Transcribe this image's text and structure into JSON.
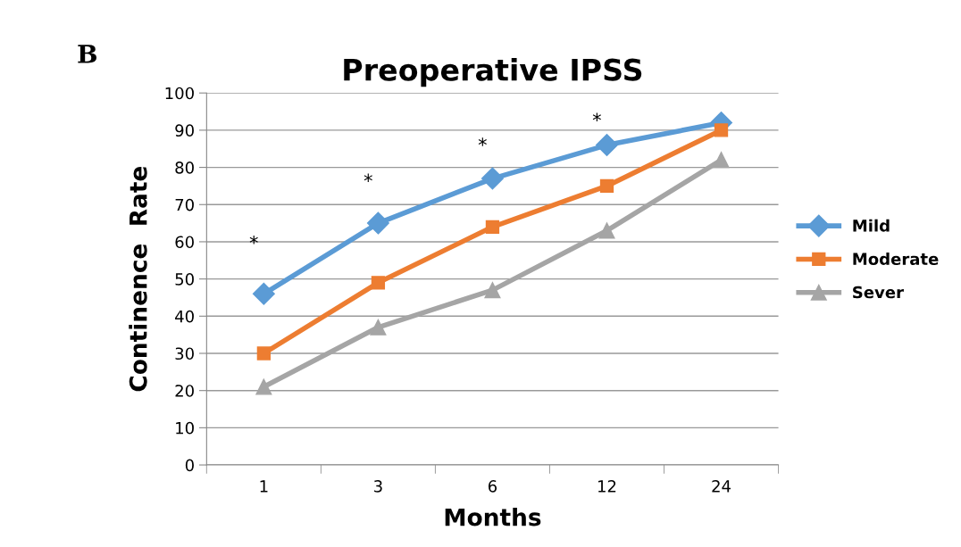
{
  "chart_data": {
    "type": "line",
    "title": "Preoperative IPSS",
    "xlabel": "Months",
    "ylabel": "Continence  Rate",
    "categories": [
      "1",
      "3",
      "6",
      "12",
      "24"
    ],
    "series": [
      {
        "name": "Mild",
        "color": "#5b9bd5",
        "marker": "diamond",
        "values": [
          46,
          65,
          77,
          86,
          92
        ]
      },
      {
        "name": "Moderate",
        "color": "#ed7d31",
        "marker": "square",
        "values": [
          30,
          49,
          64,
          75,
          90
        ]
      },
      {
        "name": "Sever",
        "color": "#a5a5a5",
        "marker": "triangle",
        "values": [
          21,
          37,
          47,
          63,
          82
        ]
      }
    ],
    "ylim": [
      0,
      100
    ],
    "yticks": [
      0,
      10,
      20,
      30,
      40,
      50,
      60,
      70,
      80,
      90,
      100
    ],
    "grid": "y",
    "legend": "right",
    "line_style": "solid",
    "annotations": [
      "B",
      "*",
      "*",
      "*",
      "*"
    ]
  }
}
